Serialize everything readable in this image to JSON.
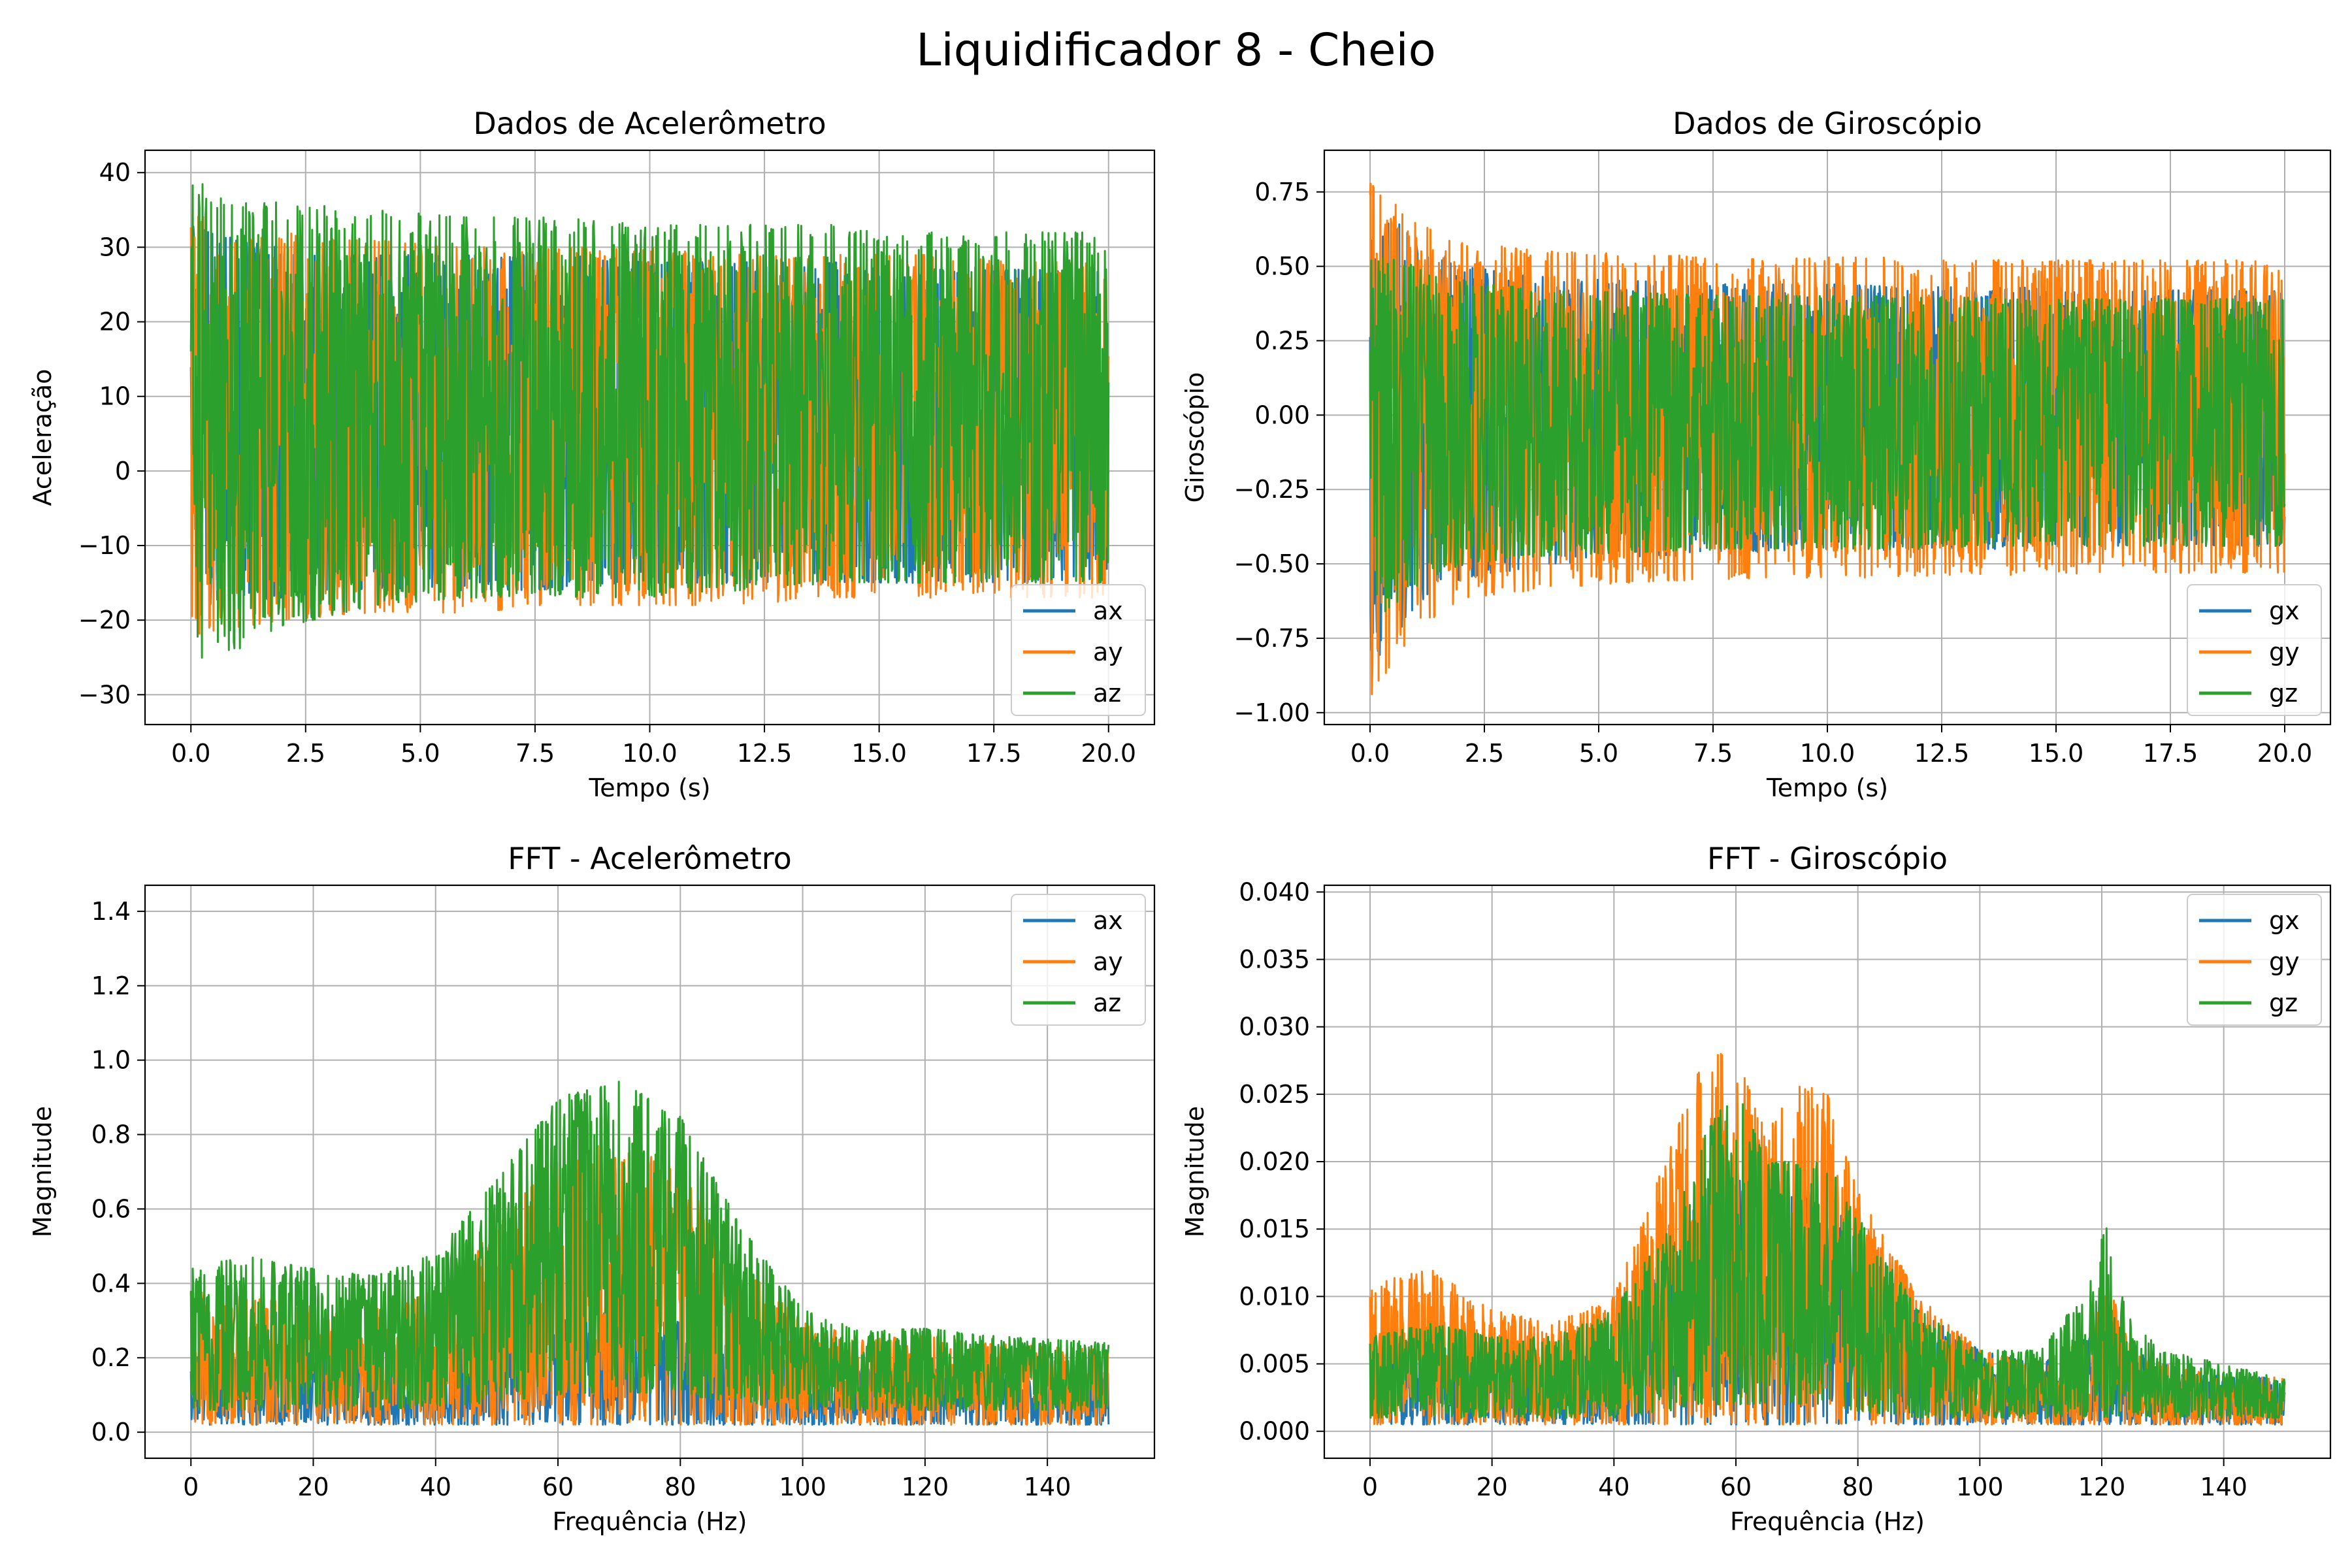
{
  "figure": {
    "title": "Liquidificador 8 - Cheio"
  },
  "colors": {
    "c1": "#1f77b4",
    "c2": "#ff7f0e",
    "c3": "#2ca02c",
    "grid": "#b0b0b0"
  },
  "chart_data": [
    {
      "type": "line",
      "title": "Dados de Acelerômetro",
      "xlabel": "Tempo (s)",
      "ylabel": "Aceleração",
      "xlim": [
        -1.0,
        21.0
      ],
      "ylim": [
        -34,
        43
      ],
      "xticks": [
        0.0,
        2.5,
        5.0,
        7.5,
        10.0,
        12.5,
        15.0,
        17.5,
        20.0
      ],
      "xticklabels": [
        "0.0",
        "2.5",
        "5.0",
        "7.5",
        "10.0",
        "12.5",
        "15.0",
        "17.5",
        "20.0"
      ],
      "yticks": [
        -30,
        -20,
        -10,
        0,
        10,
        20,
        30,
        40
      ],
      "yticklabels": [
        "−30",
        "−20",
        "−10",
        "0",
        "10",
        "20",
        "30",
        "40"
      ],
      "grid": true,
      "legend": "lower-right",
      "series": [
        {
          "name": "ax",
          "color": "#1f77b4",
          "envelope": {
            "x": [
              0,
              1,
              2,
              4,
              6,
              8,
              10,
              12,
              14,
              16,
              18,
              20
            ],
            "upper": [
              33,
              31,
              30,
              29,
              29,
              29,
              28,
              28,
              28,
              27,
              27,
              27
            ],
            "lower": [
              -18,
              -18,
              -17,
              -16,
              -16,
              -16,
              -15,
              -15,
              -15,
              -15,
              -15,
              -15
            ]
          }
        },
        {
          "name": "ay",
          "color": "#ff7f0e",
          "envelope": {
            "x": [
              0,
              1,
              2,
              4,
              6,
              8,
              10,
              12,
              14,
              16,
              18,
              20
            ],
            "upper": [
              35,
              33,
              32,
              31,
              30,
              30,
              30,
              29,
              29,
              29,
              28,
              28
            ],
            "lower": [
              -22,
              -21,
              -20,
              -19,
              -19,
              -18,
              -18,
              -18,
              -17,
              -17,
              -17,
              -17
            ]
          }
        },
        {
          "name": "az",
          "color": "#2ca02c",
          "envelope": {
            "x": [
              0,
              1,
              2,
              4,
              6,
              8,
              10,
              12,
              14,
              16,
              18,
              20
            ],
            "upper": [
              39,
              37,
              36,
              35,
              34,
              34,
              33,
              33,
              33,
              32,
              32,
              32
            ],
            "lower": [
              -26,
              -24,
              -21,
              -18,
              -17,
              -17,
              -17,
              -16,
              -15,
              -15,
              -15,
              -15
            ]
          }
        }
      ]
    },
    {
      "type": "line",
      "title": "Dados de Giroscópio",
      "xlabel": "Tempo (s)",
      "ylabel": "Giroscópio",
      "xlim": [
        -1.0,
        21.0
      ],
      "ylim": [
        -1.04,
        0.89
      ],
      "xticks": [
        0.0,
        2.5,
        5.0,
        7.5,
        10.0,
        12.5,
        15.0,
        17.5,
        20.0
      ],
      "xticklabels": [
        "0.0",
        "2.5",
        "5.0",
        "7.5",
        "10.0",
        "12.5",
        "15.0",
        "17.5",
        "20.0"
      ],
      "yticks": [
        -1.0,
        -0.75,
        -0.5,
        -0.25,
        0.0,
        0.25,
        0.5,
        0.75
      ],
      "yticklabels": [
        "−1.00",
        "−0.75",
        "−0.50",
        "−0.25",
        "0.00",
        "0.25",
        "0.50",
        "0.75"
      ],
      "grid": true,
      "legend": "lower-right",
      "series": [
        {
          "name": "gx",
          "color": "#1f77b4",
          "envelope": {
            "x": [
              0,
              1,
              2,
              4,
              6,
              8,
              10,
              12,
              14,
              16,
              18,
              20
            ],
            "upper": [
              0.72,
              0.6,
              0.5,
              0.46,
              0.45,
              0.44,
              0.44,
              0.43,
              0.43,
              0.42,
              0.42,
              0.42
            ],
            "lower": [
              -0.85,
              -0.65,
              -0.55,
              -0.5,
              -0.48,
              -0.46,
              -0.46,
              -0.45,
              -0.45,
              -0.44,
              -0.44,
              -0.44
            ]
          }
        },
        {
          "name": "gy",
          "color": "#ff7f0e",
          "envelope": {
            "x": [
              0,
              1,
              2,
              4,
              6,
              8,
              10,
              12,
              14,
              16,
              18,
              20
            ],
            "upper": [
              0.78,
              0.65,
              0.58,
              0.55,
              0.54,
              0.53,
              0.53,
              0.53,
              0.52,
              0.52,
              0.52,
              0.52
            ],
            "lower": [
              -0.95,
              -0.72,
              -0.62,
              -0.58,
              -0.56,
              -0.55,
              -0.55,
              -0.54,
              -0.54,
              -0.53,
              -0.53,
              -0.53
            ]
          }
        },
        {
          "name": "gz",
          "color": "#2ca02c",
          "envelope": {
            "x": [
              0,
              1,
              2,
              4,
              6,
              8,
              10,
              12,
              14,
              16,
              18,
              20
            ],
            "upper": [
              0.55,
              0.5,
              0.45,
              0.42,
              0.41,
              0.4,
              0.4,
              0.4,
              0.39,
              0.39,
              0.39,
              0.39
            ],
            "lower": [
              -0.7,
              -0.58,
              -0.5,
              -0.47,
              -0.46,
              -0.45,
              -0.45,
              -0.45,
              -0.44,
              -0.44,
              -0.44,
              -0.44
            ]
          }
        }
      ]
    },
    {
      "type": "line",
      "title": "FFT - Acelerômetro",
      "xlabel": "Frequência (Hz)",
      "ylabel": "Magnitude",
      "xlim": [
        -7.5,
        157.5
      ],
      "ylim": [
        -0.07,
        1.47
      ],
      "xticks": [
        0,
        20,
        40,
        60,
        80,
        100,
        120,
        140
      ],
      "xticklabels": [
        "0",
        "20",
        "40",
        "60",
        "80",
        "100",
        "120",
        "140"
      ],
      "yticks": [
        0.0,
        0.2,
        0.4,
        0.6,
        0.8,
        1.0,
        1.2,
        1.4
      ],
      "yticklabels": [
        "0.0",
        "0.2",
        "0.4",
        "0.6",
        "0.8",
        "1.0",
        "1.2",
        "1.4"
      ],
      "grid": true,
      "legend": "upper-right",
      "series": [
        {
          "name": "ax",
          "color": "#1f77b4",
          "envelope": {
            "x": [
              0,
              10,
              20,
              30,
              40,
              50,
              60,
              70,
              80,
              90,
              100,
              110,
              120,
              130,
              140,
              150
            ],
            "upper": [
              0.2,
              0.22,
              0.23,
              0.22,
              0.23,
              0.26,
              0.3,
              0.33,
              0.3,
              0.24,
              0.2,
              0.17,
              0.17,
              0.16,
              0.16,
              0.16
            ],
            "lower": [
              0.02,
              0.02,
              0.02,
              0.02,
              0.02,
              0.02,
              0.02,
              0.02,
              0.02,
              0.02,
              0.02,
              0.02,
              0.02,
              0.02,
              0.02,
              0.02
            ]
          }
        },
        {
          "name": "ay",
          "color": "#ff7f0e",
          "envelope": {
            "x": [
              0,
              10,
              20,
              30,
              40,
              50,
              60,
              70,
              80,
              90,
              100,
              110,
              120,
              130,
              140,
              150
            ],
            "upper": [
              0.38,
              0.36,
              0.34,
              0.33,
              0.38,
              0.55,
              0.75,
              0.8,
              0.7,
              0.45,
              0.3,
              0.25,
              0.26,
              0.24,
              0.23,
              0.22
            ],
            "lower": [
              0.02,
              0.02,
              0.02,
              0.02,
              0.02,
              0.02,
              0.02,
              0.02,
              0.02,
              0.02,
              0.02,
              0.02,
              0.02,
              0.02,
              0.02,
              0.02
            ]
          }
        },
        {
          "name": "az",
          "color": "#2ca02c",
          "envelope": {
            "x": [
              0,
              10,
              20,
              30,
              40,
              50,
              60,
              70,
              80,
              90,
              100,
              110,
              120,
              130,
              140,
              150
            ],
            "upper": [
              0.45,
              0.47,
              0.44,
              0.42,
              0.48,
              0.68,
              0.9,
              0.95,
              0.85,
              0.55,
              0.33,
              0.27,
              0.28,
              0.26,
              0.25,
              0.24
            ],
            "lower": [
              0.06,
              0.06,
              0.06,
              0.06,
              0.07,
              0.08,
              0.1,
              0.11,
              0.1,
              0.08,
              0.06,
              0.06,
              0.06,
              0.06,
              0.06,
              0.06
            ]
          }
        }
      ]
    },
    {
      "type": "line",
      "title": "FFT - Giroscópio",
      "xlabel": "Frequência (Hz)",
      "ylabel": "Magnitude",
      "xlim": [
        -7.5,
        157.5
      ],
      "ylim": [
        -0.002,
        0.0405
      ],
      "xticks": [
        0,
        20,
        40,
        60,
        80,
        100,
        120,
        140
      ],
      "xticklabels": [
        "0",
        "20",
        "40",
        "60",
        "80",
        "100",
        "120",
        "140"
      ],
      "yticks": [
        0.0,
        0.005,
        0.01,
        0.015,
        0.02,
        0.025,
        0.03,
        0.035,
        0.04
      ],
      "yticklabels": [
        "0.000",
        "0.005",
        "0.010",
        "0.015",
        "0.020",
        "0.025",
        "0.030",
        "0.035",
        "0.040"
      ],
      "grid": true,
      "legend": "upper-right",
      "series": [
        {
          "name": "gx",
          "color": "#1f77b4",
          "envelope": {
            "x": [
              0,
              10,
              20,
              30,
              40,
              50,
              55,
              60,
              65,
              70,
              75,
              80,
              90,
              100,
              110,
              118,
              121,
              125,
              130,
              140,
              150
            ],
            "upper": [
              0.006,
              0.007,
              0.006,
              0.006,
              0.008,
              0.014,
              0.018,
              0.02,
              0.016,
              0.018,
              0.018,
              0.014,
              0.009,
              0.006,
              0.005,
              0.007,
              0.01,
              0.006,
              0.005,
              0.004,
              0.004
            ],
            "lower": [
              0.0005,
              0.0005,
              0.0005,
              0.0005,
              0.0005,
              0.0005,
              0.0005,
              0.0005,
              0.0005,
              0.0005,
              0.0005,
              0.0005,
              0.0005,
              0.0005,
              0.0005,
              0.0005,
              0.0005,
              0.0005,
              0.0005,
              0.0005,
              0.0005
            ]
          }
        },
        {
          "name": "gy",
          "color": "#ff7f0e",
          "envelope": {
            "x": [
              0,
              10,
              20,
              30,
              40,
              50,
              55,
              60,
              65,
              70,
              75,
              80,
              90,
              100,
              110,
              118,
              121,
              125,
              130,
              140,
              150
            ],
            "upper": [
              0.011,
              0.012,
              0.009,
              0.008,
              0.01,
              0.022,
              0.028,
              0.028,
              0.022,
              0.026,
              0.025,
              0.018,
              0.01,
              0.006,
              0.005,
              0.007,
              0.011,
              0.006,
              0.005,
              0.004,
              0.004
            ],
            "lower": [
              0.0005,
              0.0005,
              0.0005,
              0.0005,
              0.0005,
              0.0005,
              0.0005,
              0.0005,
              0.0005,
              0.0005,
              0.0005,
              0.0005,
              0.0005,
              0.0005,
              0.0005,
              0.0005,
              0.0005,
              0.0005,
              0.0005,
              0.0005,
              0.0005
            ]
          }
        },
        {
          "name": "gz",
          "color": "#2ca02c",
          "envelope": {
            "x": [
              0,
              10,
              20,
              30,
              40,
              50,
              55,
              60,
              65,
              70,
              75,
              80,
              90,
              100,
              110,
              118,
              121,
              125,
              130,
              140,
              150
            ],
            "upper": [
              0.007,
              0.008,
              0.007,
              0.007,
              0.009,
              0.016,
              0.022,
              0.026,
              0.02,
              0.02,
              0.02,
              0.016,
              0.009,
              0.006,
              0.006,
              0.011,
              0.016,
              0.008,
              0.006,
              0.005,
              0.004
            ],
            "lower": [
              0.001,
              0.001,
              0.001,
              0.001,
              0.001,
              0.0015,
              0.002,
              0.002,
              0.002,
              0.002,
              0.002,
              0.0015,
              0.001,
              0.001,
              0.001,
              0.001,
              0.001,
              0.001,
              0.001,
              0.001,
              0.001
            ]
          }
        }
      ]
    }
  ]
}
